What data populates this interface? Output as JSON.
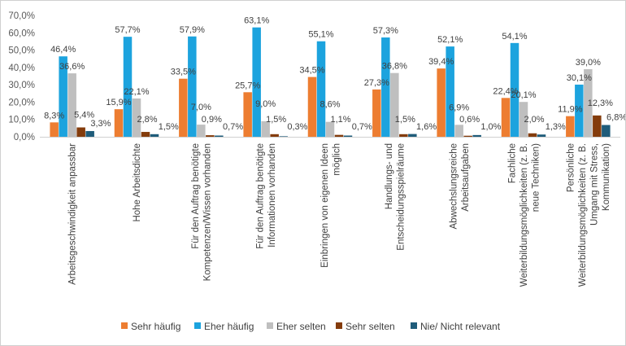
{
  "chart_data": {
    "type": "bar",
    "title": "",
    "xlabel": "",
    "ylabel": "",
    "ylim": [
      0,
      70
    ],
    "yticks": [
      0,
      10,
      20,
      30,
      40,
      50,
      60,
      70
    ],
    "ytick_labels": [
      "0,0%",
      "10,0%",
      "20,0%",
      "30,0%",
      "40,0%",
      "50,0%",
      "60,0%",
      "70,0%"
    ],
    "grid": false,
    "legend_position": "bottom",
    "categories": [
      [
        "Arbeitsgeschwindigkeit anpassbar"
      ],
      [
        "Hohe Arbeitsdichte"
      ],
      [
        "Für den Auftrag benötigte",
        "Kompetenzen/Wissen vorhanden"
      ],
      [
        "Für den Auftrag benötigte",
        "Informationen vorhanden"
      ],
      [
        "Einbringen von eigenen Ideen",
        "möglich"
      ],
      [
        "Handlungs- und",
        "Entscheidungsspielräume"
      ],
      [
        "Abwechslungsreiche",
        "Arbeitsaufgaben"
      ],
      [
        "Fachliche",
        "Weiterbildungsmöglichkeiten (z. B.",
        "neue Techniken)"
      ],
      [
        "Persönliche",
        "Weiterbildungsmöglichkeiten (z. B.",
        "Umgang mit Stress,",
        "Kommunikation)"
      ]
    ],
    "series": [
      {
        "name": "Sehr häufig",
        "color": "#ED7D31",
        "values": [
          8.3,
          15.9,
          33.5,
          25.7,
          34.5,
          27.3,
          39.4,
          22.4,
          11.9
        ],
        "labels": [
          "8,3%",
          "15,9%",
          "33,5%",
          "25,7%",
          "34,5%",
          "27,3%",
          "39,4%",
          "22,4%",
          "11,9%"
        ]
      },
      {
        "name": "Eher häufig",
        "color": "#1CA3DE",
        "values": [
          46.4,
          57.7,
          57.9,
          63.1,
          55.1,
          57.3,
          52.1,
          54.1,
          30.1
        ],
        "labels": [
          "46,4%",
          "57,7%",
          "57,9%",
          "63,1%",
          "55,1%",
          "57,3%",
          "52,1%",
          "54,1%",
          "30,1%"
        ]
      },
      {
        "name": "Eher selten",
        "color": "#BFBFBF",
        "values": [
          36.6,
          22.1,
          7.0,
          9.0,
          8.6,
          36.8,
          6.9,
          20.1,
          39.0
        ],
        "labels": [
          "36,6%",
          "22,1%",
          "7,0%",
          "9,0%",
          "8,6%",
          "36,8%",
          "6,9%",
          "20,1%",
          "39,0%"
        ]
      },
      {
        "name": "Sehr selten",
        "color": "#843C0C",
        "values": [
          5.4,
          2.8,
          0.9,
          1.5,
          1.1,
          1.5,
          0.6,
          2.0,
          12.3
        ],
        "labels": [
          "5,4%",
          "2,8%",
          "0,9%",
          "1,5%",
          "1,1%",
          "1,5%",
          "0,6%",
          "2,0%",
          "12,3%"
        ]
      },
      {
        "name": "Nie/ Nicht relevant",
        "color": "#1F5C7A",
        "values": [
          3.3,
          1.5,
          0.7,
          0.3,
          0.7,
          1.6,
          1.0,
          1.3,
          6.8
        ],
        "labels": [
          "3,3%",
          "1,5%",
          "0,7%",
          "0,3%",
          "0,7%",
          "1,6%",
          "1,0%",
          "1,3%",
          "6,8%"
        ]
      }
    ]
  }
}
